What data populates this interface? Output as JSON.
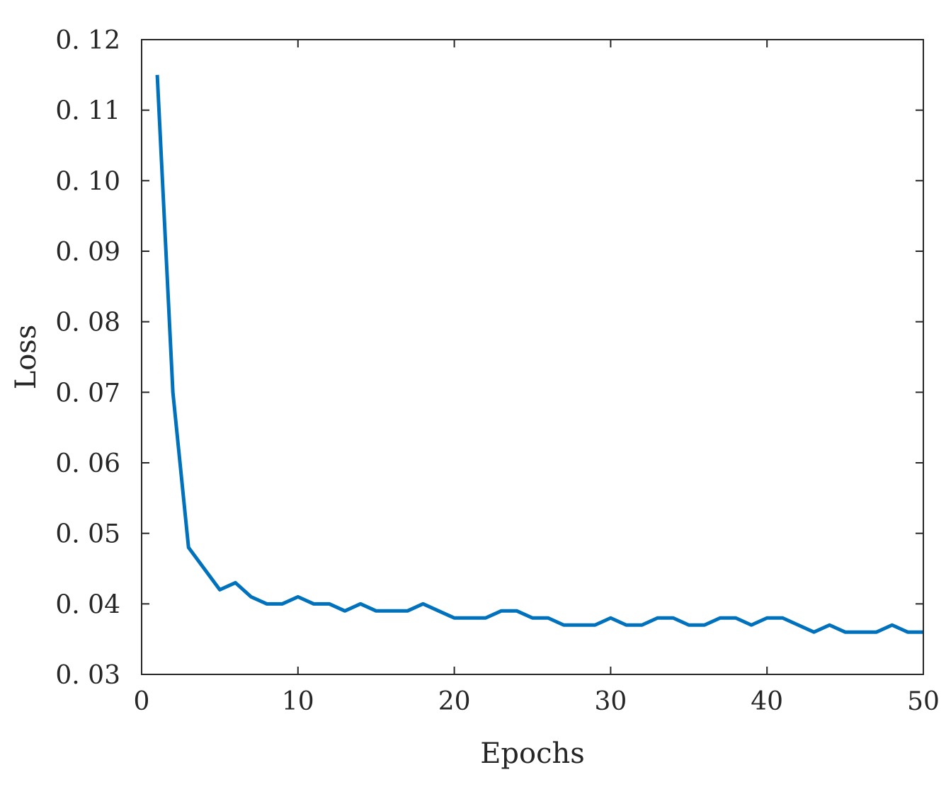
{
  "chart_data": {
    "type": "line",
    "title": "",
    "xlabel": "Epochs",
    "ylabel": "Loss",
    "xlim": [
      0,
      50
    ],
    "ylim": [
      0.03,
      0.12
    ],
    "x_ticks": [
      0,
      10,
      20,
      30,
      40,
      50
    ],
    "x_tick_labels": [
      "0",
      "10",
      "20",
      "30",
      "40",
      "50"
    ],
    "y_ticks": [
      0.03,
      0.04,
      0.05,
      0.06,
      0.07,
      0.08,
      0.09,
      0.1,
      0.11,
      0.12
    ],
    "y_tick_labels": [
      "0. 03",
      "0. 04",
      "0. 05",
      "0. 06",
      "0. 07",
      "0. 08",
      "0. 09",
      "0. 10",
      "0. 11",
      "0. 12"
    ],
    "grid": false,
    "line_color": "#0072BD",
    "series": [
      {
        "x": [
          1,
          2,
          3,
          4,
          5,
          6,
          7,
          8,
          9,
          10,
          11,
          12,
          13,
          14,
          15,
          16,
          17,
          18,
          19,
          20,
          21,
          22,
          23,
          24,
          25,
          26,
          27,
          28,
          29,
          30,
          31,
          32,
          33,
          34,
          35,
          36,
          37,
          38,
          39,
          40,
          41,
          42,
          43,
          44,
          45,
          46,
          47,
          48,
          49,
          50
        ],
        "values": [
          0.115,
          0.07,
          0.048,
          0.045,
          0.042,
          0.043,
          0.041,
          0.04,
          0.04,
          0.041,
          0.04,
          0.04,
          0.039,
          0.04,
          0.039,
          0.039,
          0.039,
          0.04,
          0.039,
          0.038,
          0.038,
          0.038,
          0.039,
          0.039,
          0.038,
          0.038,
          0.037,
          0.037,
          0.037,
          0.038,
          0.037,
          0.037,
          0.038,
          0.038,
          0.037,
          0.037,
          0.038,
          0.038,
          0.037,
          0.038,
          0.038,
          0.037,
          0.036,
          0.037,
          0.036,
          0.036,
          0.036,
          0.037,
          0.036,
          0.036
        ]
      }
    ]
  }
}
